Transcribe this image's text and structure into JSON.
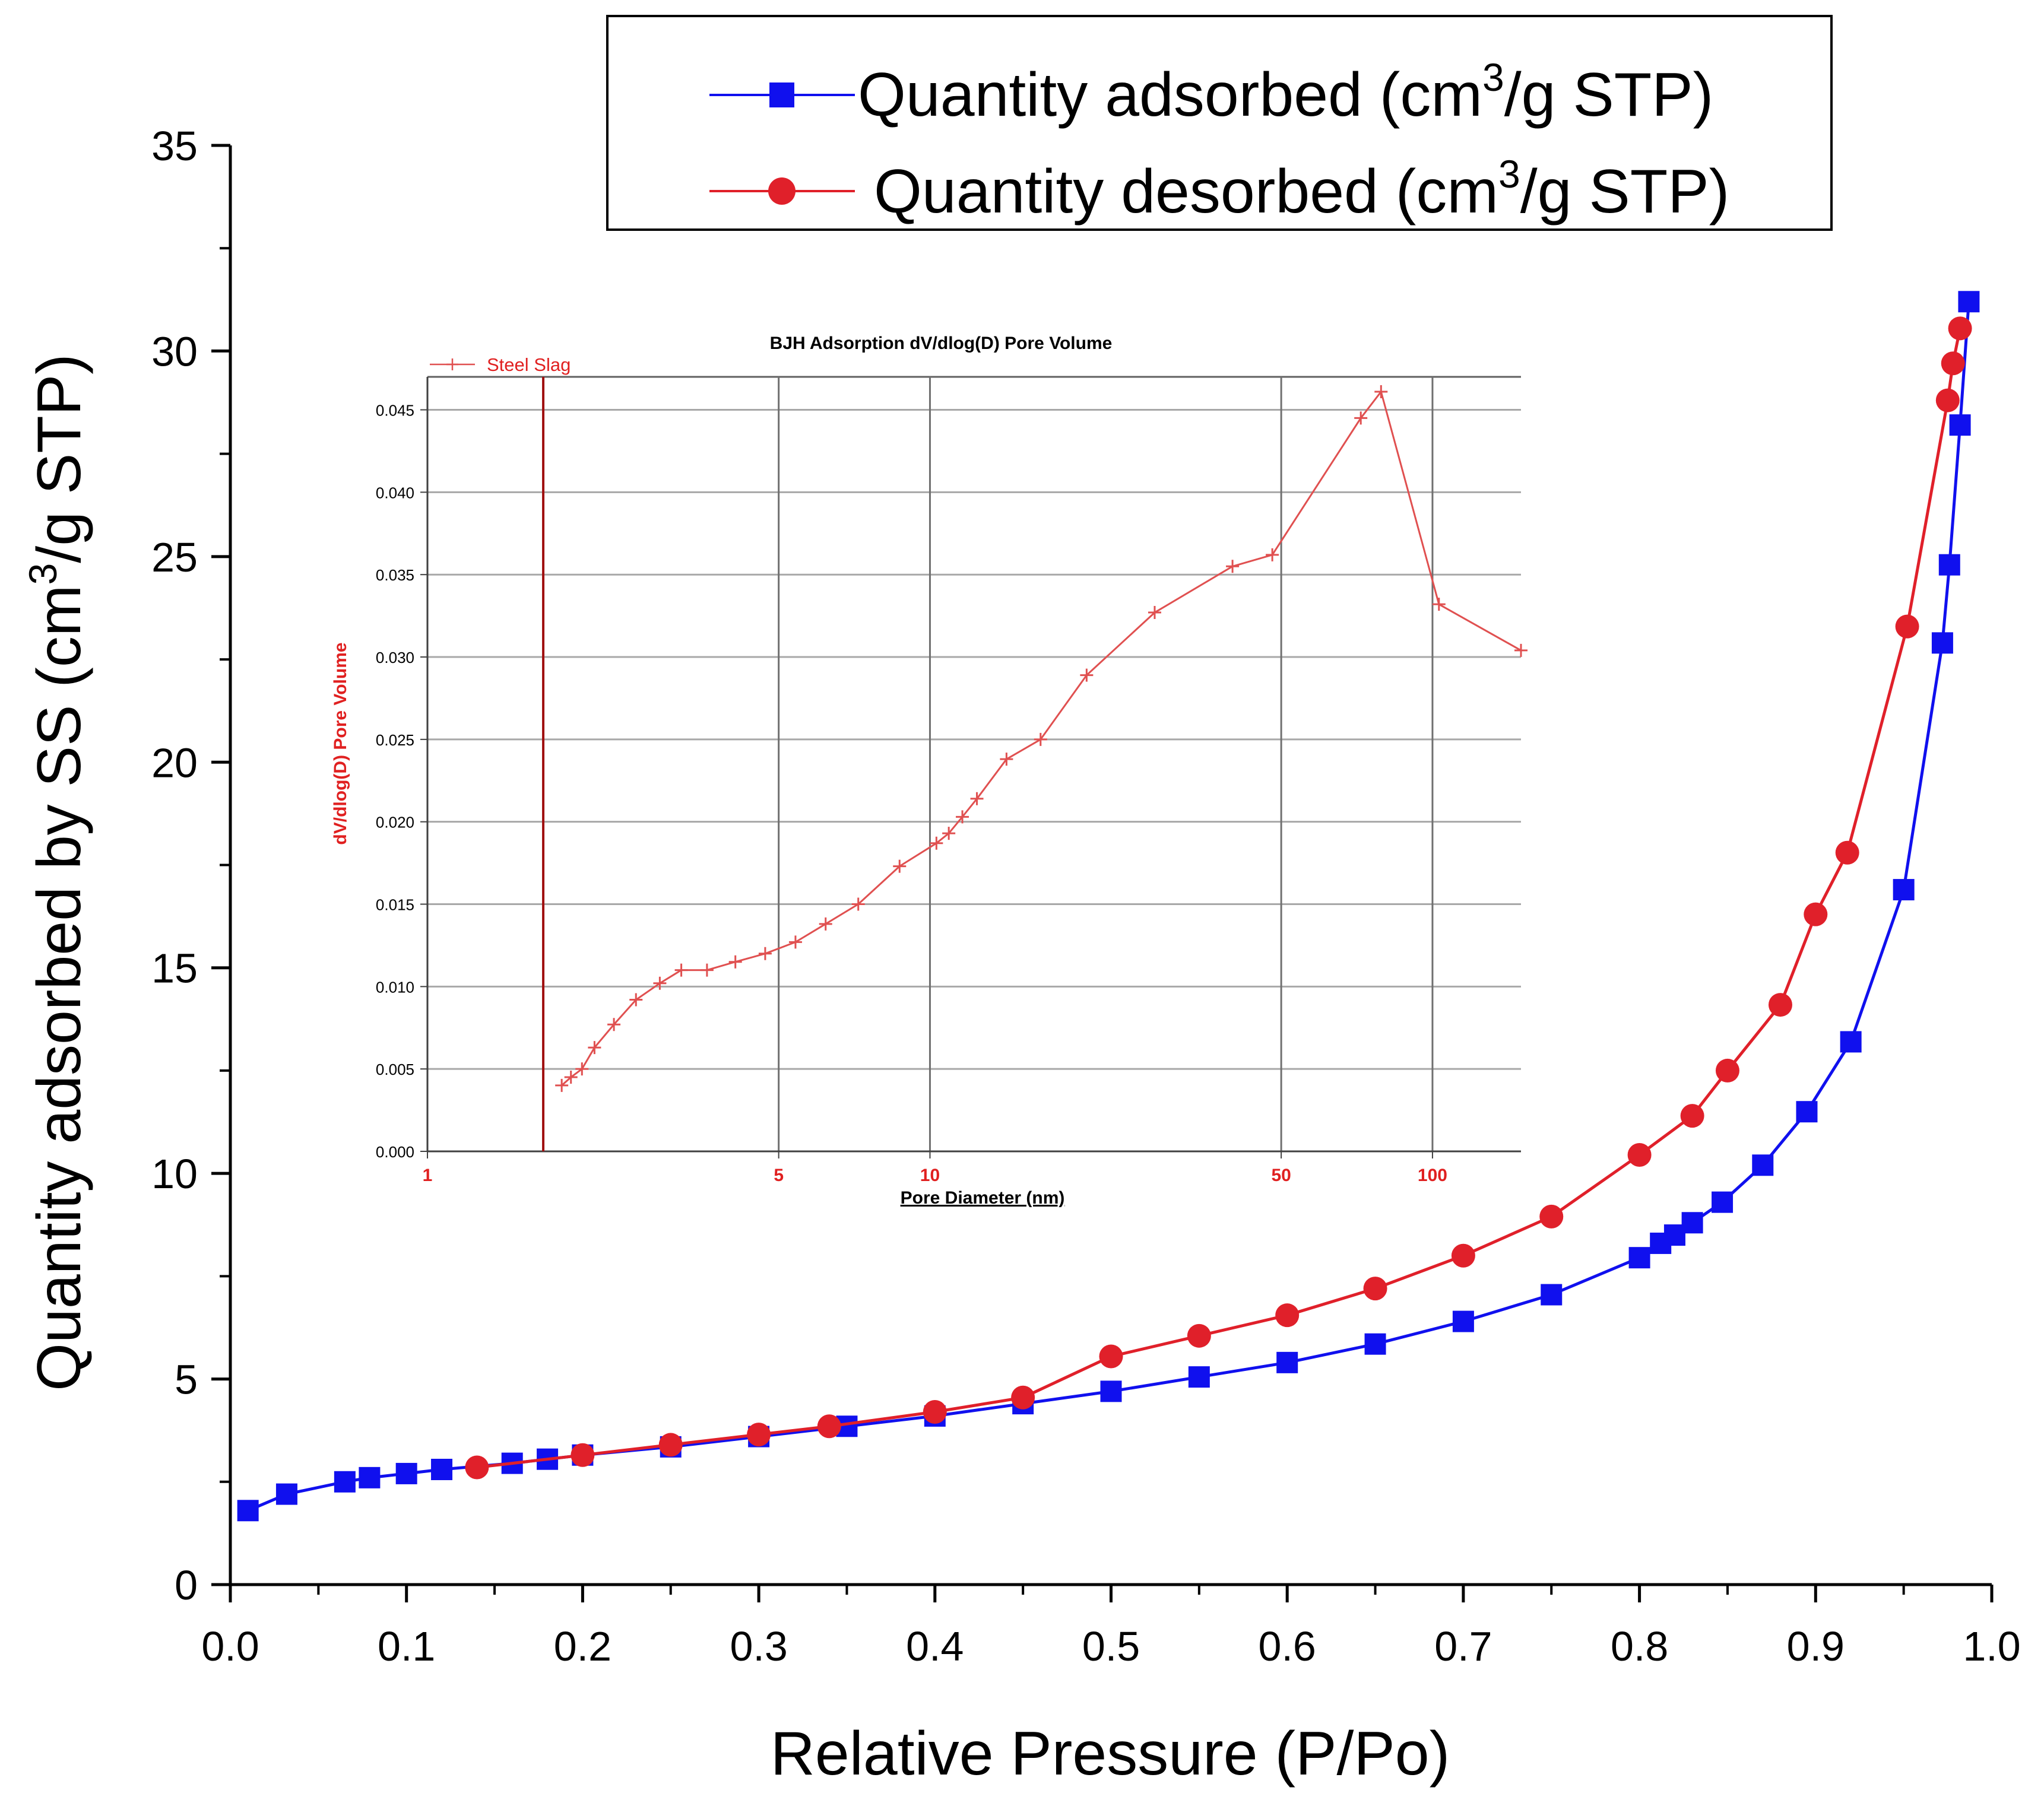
{
  "chart_data": [
    {
      "type": "line",
      "title": "",
      "xlabel": "Relative Pressure (P/Po)",
      "ylabel": "Quantity adsorbed by SS (cm3/g STP)",
      "ylabel_parts": [
        "Quantity adsorbed by SS (cm",
        "3",
        "/g STP)"
      ],
      "xlim": [
        0.0,
        1.0
      ],
      "ylim": [
        0,
        35
      ],
      "xticks": [
        "0.0",
        "0.1",
        "0.2",
        "0.3",
        "0.4",
        "0.5",
        "0.6",
        "0.7",
        "0.8",
        "0.9",
        "1.0"
      ],
      "yticks": [
        "0",
        "5",
        "10",
        "15",
        "20",
        "25",
        "30",
        "35"
      ],
      "legend_position": "top-right",
      "series": [
        {
          "name": "Quantity adsorbed (cm3/g STP)",
          "legend_parts": [
            "Quantity adsorbed (cm",
            "3",
            "/g STP)"
          ],
          "color": "#1010ee",
          "marker": "square",
          "x": [
            0.01,
            0.032,
            0.065,
            0.079,
            0.1,
            0.12,
            0.16,
            0.18,
            0.2,
            0.25,
            0.3,
            0.35,
            0.4,
            0.45,
            0.5,
            0.55,
            0.6,
            0.65,
            0.7,
            0.75,
            0.8,
            0.812,
            0.82,
            0.83,
            0.847,
            0.87,
            0.895,
            0.92,
            0.95,
            0.972,
            0.976,
            0.982,
            0.987
          ],
          "y": [
            1.8,
            2.2,
            2.5,
            2.6,
            2.7,
            2.8,
            2.95,
            3.05,
            3.15,
            3.35,
            3.6,
            3.85,
            4.1,
            4.4,
            4.7,
            5.05,
            5.4,
            5.85,
            6.4,
            7.05,
            7.95,
            8.3,
            8.5,
            8.8,
            9.3,
            10.2,
            11.5,
            13.2,
            16.9,
            22.9,
            24.8,
            28.2,
            31.2
          ]
        },
        {
          "name": "Quantity desorbed (cm3/g STP)",
          "legend_parts": [
            "Quantity desorbed (cm",
            "3",
            "/g STP)"
          ],
          "color": "#e0202a",
          "marker": "circle",
          "x": [
            0.14,
            0.2,
            0.25,
            0.3,
            0.34,
            0.4,
            0.45,
            0.5,
            0.55,
            0.6,
            0.65,
            0.7,
            0.75,
            0.8,
            0.83,
            0.85,
            0.88,
            0.9,
            0.918,
            0.952,
            0.975,
            0.978,
            0.982
          ],
          "y": [
            2.85,
            3.15,
            3.4,
            3.65,
            3.85,
            4.2,
            4.55,
            5.55,
            6.05,
            6.55,
            7.2,
            8.0,
            8.95,
            10.45,
            11.4,
            12.5,
            14.1,
            16.3,
            17.8,
            23.3,
            28.8,
            29.7,
            30.55
          ]
        }
      ]
    },
    {
      "type": "line",
      "title": "BJH Adsorption dV/dlog(D) Pore Volume",
      "xlabel": "Pore Diameter (nm)",
      "ylabel": "dV/dlog(D) Pore Volume",
      "xscale": "log",
      "xlim": [
        1,
        150
      ],
      "ylim": [
        0.0,
        0.047
      ],
      "xticks": [
        1,
        5,
        10,
        50,
        100
      ],
      "xtick_labels": [
        "1",
        "5",
        "10",
        "50",
        "100"
      ],
      "xgrid": [
        5,
        10,
        50,
        100
      ],
      "yticks": [
        0.0,
        0.005,
        0.01,
        0.015,
        0.02,
        0.025,
        0.03,
        0.035,
        0.04,
        0.045
      ],
      "ytick_labels": [
        "0.000",
        "0.005",
        "0.010",
        "0.015",
        "0.020",
        "0.025",
        "0.030",
        "0.035",
        "0.040",
        "0.045"
      ],
      "reference_line_x": 1.7,
      "legend_position": "top-left",
      "series": [
        {
          "name": "Steel Slag",
          "color": "#e05050",
          "marker": "plus",
          "x": [
            1.85,
            1.93,
            2.03,
            2.15,
            2.35,
            2.6,
            2.9,
            3.2,
            3.6,
            4.1,
            4.7,
            5.4,
            6.2,
            7.2,
            8.7,
            10.3,
            10.9,
            11.6,
            12.4,
            14.2,
            16.6,
            20.5,
            28,
            40,
            48,
            72,
            79,
            103,
            150
          ],
          "y": [
            0.004,
            0.0045,
            0.005,
            0.0063,
            0.0077,
            0.0092,
            0.0102,
            0.011,
            0.011,
            0.0115,
            0.012,
            0.0127,
            0.0138,
            0.015,
            0.0173,
            0.0187,
            0.0193,
            0.0203,
            0.0214,
            0.0238,
            0.025,
            0.0289,
            0.0327,
            0.0355,
            0.0362,
            0.0445,
            0.0461,
            0.0332,
            0.0304
          ]
        }
      ]
    }
  ]
}
